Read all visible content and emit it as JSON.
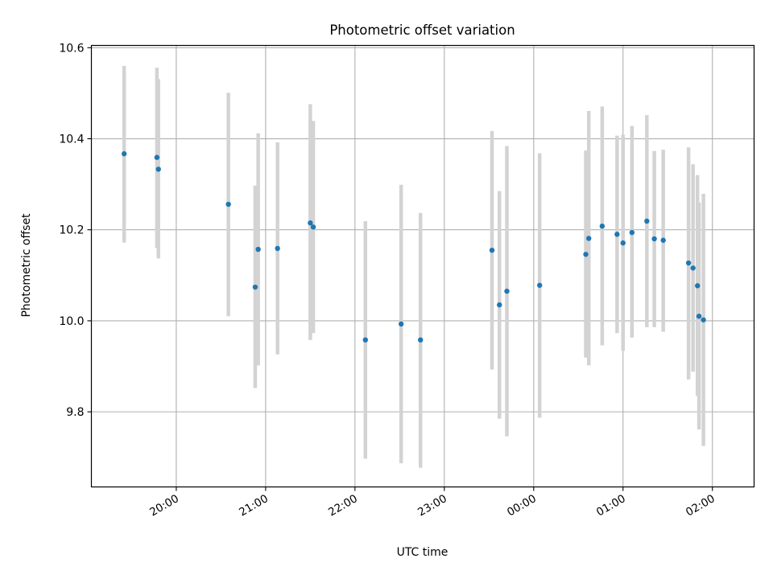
{
  "chart_data": {
    "type": "scatter",
    "title": "Photometric offset variation",
    "xlabel": "UTC time",
    "ylabel": "Photometric offset",
    "xlim": [
      "19:03",
      "02:28"
    ],
    "ylim": [
      9.635,
      10.605
    ],
    "grid": true,
    "x_ticks": [
      "20:00",
      "21:00",
      "22:00",
      "23:00",
      "00:00",
      "01:00",
      "02:00"
    ],
    "y_ticks": [
      "9.8",
      "10.0",
      "10.2",
      "10.4",
      "10.6"
    ],
    "marker_color": "#1f77b4",
    "errorbar_color": "#d3d3d3",
    "points": [
      {
        "t": "19:25",
        "y": 10.367,
        "lo": 10.172,
        "hi": 10.56
      },
      {
        "t": "19:47",
        "y": 10.359,
        "lo": 10.16,
        "hi": 10.556
      },
      {
        "t": "19:48",
        "y": 10.333,
        "lo": 10.137,
        "hi": 10.531
      },
      {
        "t": "20:35",
        "y": 10.256,
        "lo": 10.01,
        "hi": 10.501
      },
      {
        "t": "20:53",
        "y": 10.074,
        "lo": 9.852,
        "hi": 10.297
      },
      {
        "t": "20:55",
        "y": 10.157,
        "lo": 9.902,
        "hi": 10.412
      },
      {
        "t": "21:08",
        "y": 10.159,
        "lo": 9.926,
        "hi": 10.392
      },
      {
        "t": "21:30",
        "y": 10.215,
        "lo": 9.958,
        "hi": 10.476
      },
      {
        "t": "21:32",
        "y": 10.206,
        "lo": 9.973,
        "hi": 10.439
      },
      {
        "t": "22:07",
        "y": 9.958,
        "lo": 9.697,
        "hi": 10.219
      },
      {
        "t": "22:31",
        "y": 9.993,
        "lo": 9.687,
        "hi": 10.299
      },
      {
        "t": "22:44",
        "y": 9.958,
        "lo": 9.677,
        "hi": 10.237
      },
      {
        "t": "23:32",
        "y": 10.155,
        "lo": 9.893,
        "hi": 10.417
      },
      {
        "t": "23:37",
        "y": 10.035,
        "lo": 9.785,
        "hi": 10.285
      },
      {
        "t": "23:42",
        "y": 10.065,
        "lo": 9.746,
        "hi": 10.384
      },
      {
        "t": "00:04",
        "y": 10.078,
        "lo": 9.787,
        "hi": 10.368
      },
      {
        "t": "00:35",
        "y": 10.146,
        "lo": 9.919,
        "hi": 10.374
      },
      {
        "t": "00:37",
        "y": 10.181,
        "lo": 9.902,
        "hi": 10.461
      },
      {
        "t": "00:46",
        "y": 10.208,
        "lo": 9.946,
        "hi": 10.471
      },
      {
        "t": "00:56",
        "y": 10.19,
        "lo": 9.973,
        "hi": 10.407
      },
      {
        "t": "01:00",
        "y": 10.171,
        "lo": 9.934,
        "hi": 10.409
      },
      {
        "t": "01:06",
        "y": 10.194,
        "lo": 9.963,
        "hi": 10.428
      },
      {
        "t": "01:16",
        "y": 10.219,
        "lo": 9.986,
        "hi": 10.452
      },
      {
        "t": "01:21",
        "y": 10.18,
        "lo": 9.986,
        "hi": 10.373
      },
      {
        "t": "01:27",
        "y": 10.177,
        "lo": 9.976,
        "hi": 10.376
      },
      {
        "t": "01:44",
        "y": 10.127,
        "lo": 9.871,
        "hi": 10.381
      },
      {
        "t": "01:47",
        "y": 10.116,
        "lo": 9.888,
        "hi": 10.344
      },
      {
        "t": "01:50",
        "y": 10.077,
        "lo": 9.835,
        "hi": 10.32
      },
      {
        "t": "01:51",
        "y": 10.01,
        "lo": 9.761,
        "hi": 10.26
      },
      {
        "t": "01:54",
        "y": 10.002,
        "lo": 9.725,
        "hi": 10.279
      }
    ]
  }
}
